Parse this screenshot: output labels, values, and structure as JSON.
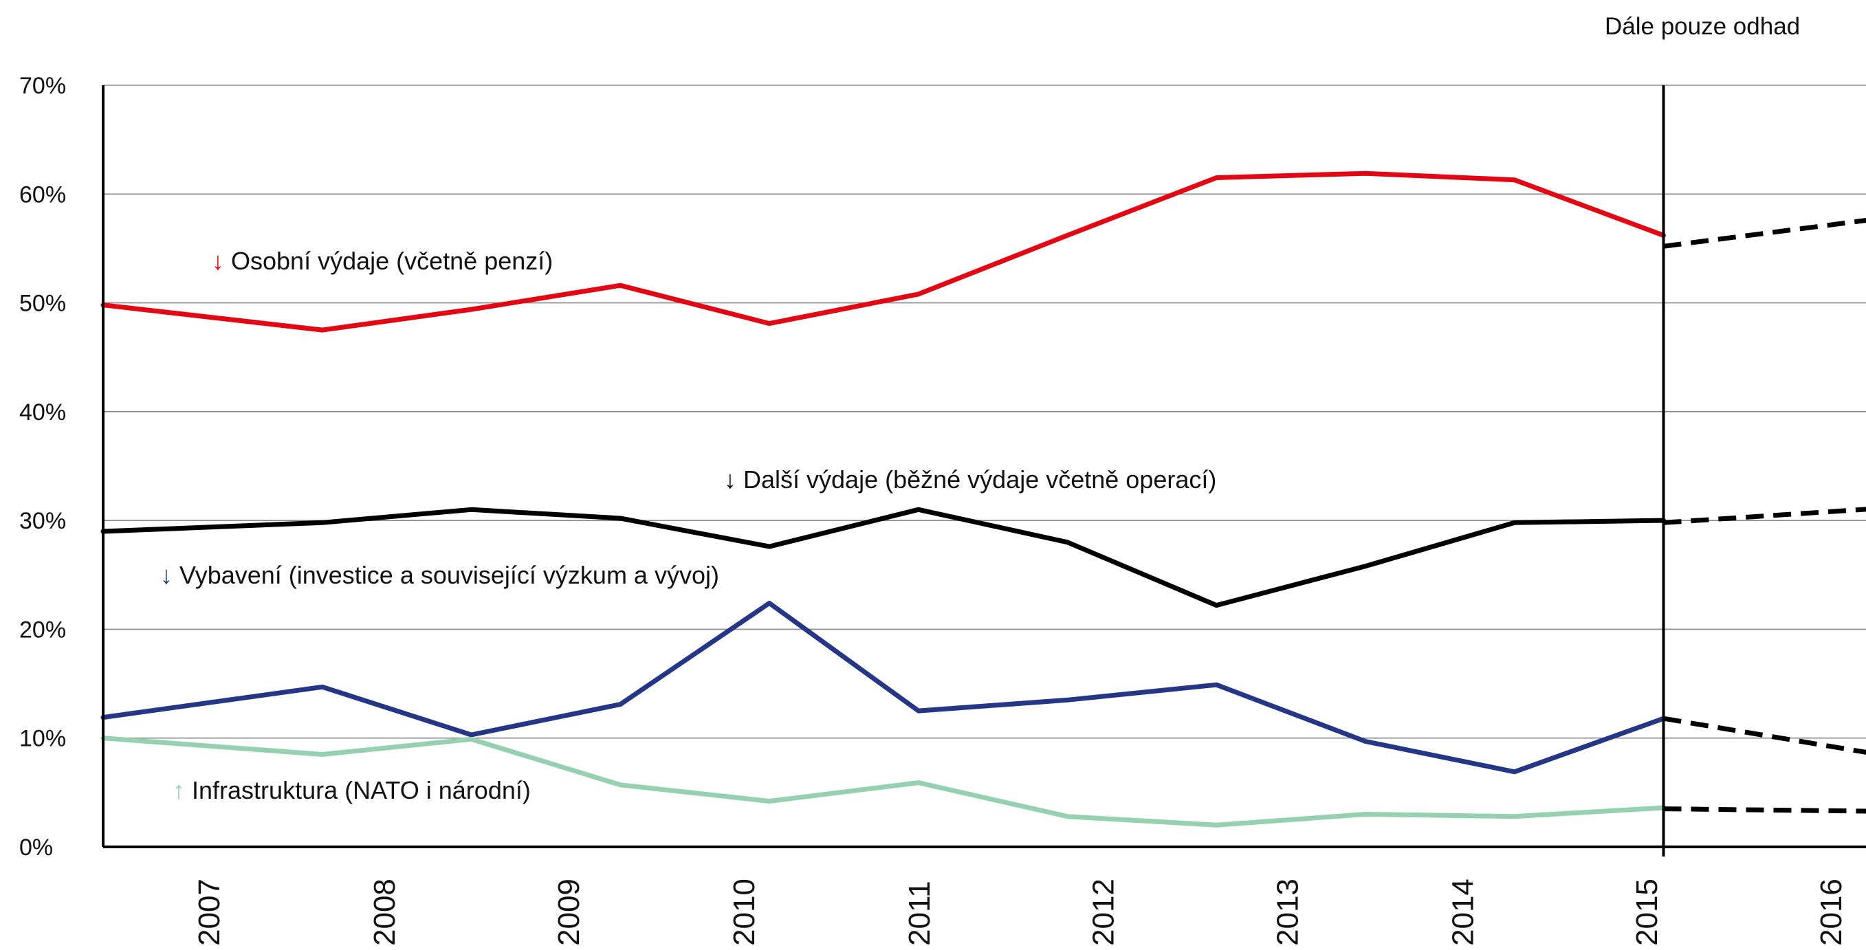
{
  "chart_data": {
    "type": "line",
    "annotation": "Dále pouze odhad",
    "x": [
      "2007",
      "2008",
      "2009",
      "2010",
      "2011",
      "2012",
      "2013",
      "2014",
      "2015",
      "2016"
    ],
    "ylim": [
      0,
      70
    ],
    "yticks": [
      "0%",
      "10%",
      "20%",
      "30%",
      "40%",
      "50%",
      "60%",
      "70%"
    ],
    "grid": true,
    "series": [
      {
        "name": "Osobní výdaje (včetně penzí)",
        "arrow": "↓",
        "color": "#e30613",
        "points": [
          [
            0.0,
            49.8
          ],
          [
            1.25,
            47.5
          ],
          [
            2.1,
            49.4
          ],
          [
            2.95,
            51.6
          ],
          [
            3.8,
            48.1
          ],
          [
            4.65,
            50.8
          ],
          [
            5.5,
            56.2
          ],
          [
            6.35,
            61.5
          ],
          [
            7.2,
            61.9
          ],
          [
            8.05,
            61.3
          ],
          [
            8.9,
            56.2
          ]
        ],
        "estimate": [
          [
            8.9,
            55.2
          ],
          [
            10.5,
            58.5
          ]
        ]
      },
      {
        "name": "Další výdaje (běžné výdaje včetně operací)",
        "arrow": "↓",
        "color": "#000000",
        "points": [
          [
            0.0,
            29.0
          ],
          [
            1.25,
            29.8
          ],
          [
            2.1,
            31.0
          ],
          [
            2.95,
            30.2
          ],
          [
            3.8,
            27.6
          ],
          [
            4.65,
            31.0
          ],
          [
            5.5,
            28.0
          ],
          [
            6.35,
            22.2
          ],
          [
            7.2,
            25.8
          ],
          [
            8.05,
            29.8
          ],
          [
            8.9,
            30.0
          ]
        ],
        "estimate": [
          [
            8.9,
            29.8
          ],
          [
            10.5,
            31.5
          ]
        ]
      },
      {
        "name": "Vybavení (investice a související výzkum a vývoj)",
        "arrow": "↓",
        "color": "#253686",
        "points": [
          [
            0.0,
            11.9
          ],
          [
            1.25,
            14.7
          ],
          [
            2.1,
            10.3
          ],
          [
            2.95,
            13.1
          ],
          [
            3.8,
            22.4
          ],
          [
            4.65,
            12.5
          ],
          [
            5.5,
            13.5
          ],
          [
            6.35,
            14.9
          ],
          [
            7.2,
            9.7
          ],
          [
            8.05,
            6.9
          ],
          [
            8.9,
            11.8
          ]
        ],
        "estimate": [
          [
            8.9,
            11.8
          ],
          [
            10.5,
            7.5
          ]
        ]
      },
      {
        "name": "Infrastruktura (NATO i národní)",
        "arrow": "↑",
        "color": "#95d0b0",
        "points": [
          [
            0.0,
            10.0
          ],
          [
            1.25,
            8.5
          ],
          [
            2.1,
            9.9
          ],
          [
            2.95,
            5.7
          ],
          [
            3.8,
            4.2
          ],
          [
            4.65,
            5.9
          ],
          [
            5.5,
            2.8
          ],
          [
            6.35,
            2.0
          ],
          [
            7.2,
            3.0
          ],
          [
            8.05,
            2.8
          ],
          [
            8.9,
            3.6
          ]
        ],
        "estimate": [
          [
            8.9,
            3.5
          ],
          [
            10.5,
            3.2
          ]
        ]
      }
    ]
  }
}
